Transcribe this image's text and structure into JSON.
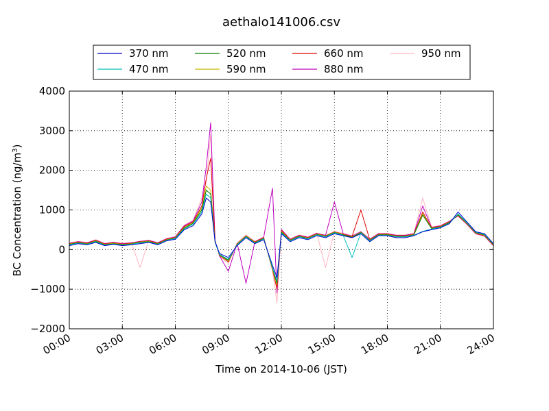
{
  "chart_data": {
    "type": "line",
    "title": "aethalo141006.csv",
    "xlabel": "Time on 2014-10-06 (JST)",
    "ylabel": "BC Concentration (ng/m",
    "ylabel_sup": "3",
    "ylabel_end": ")",
    "xlim": [
      "00:00",
      "24:00"
    ],
    "ylim": [
      -2000,
      4000
    ],
    "x_ticks": [
      "00:00",
      "03:00",
      "06:00",
      "09:00",
      "12:00",
      "15:00",
      "18:00",
      "21:00",
      "24:00"
    ],
    "y_ticks": [
      "−2000",
      "−1000",
      "0",
      "1000",
      "2000",
      "3000",
      "4000"
    ],
    "grid": true,
    "legend_position": "top-center",
    "series": [
      {
        "name": "370 nm",
        "color": "#0000cc",
        "x": [
          "00:00",
          "00:30",
          "01:00",
          "01:30",
          "02:00",
          "02:30",
          "03:00",
          "03:30",
          "04:00",
          "04:30",
          "05:00",
          "05:30",
          "06:00",
          "06:30",
          "07:00",
          "07:30",
          "07:45",
          "08:00",
          "08:15",
          "08:30",
          "09:00",
          "09:30",
          "10:00",
          "10:30",
          "11:00",
          "11:30",
          "11:45",
          "12:00",
          "12:30",
          "13:00",
          "13:30",
          "14:00",
          "14:30",
          "15:00",
          "15:30",
          "16:00",
          "16:30",
          "17:00",
          "17:30",
          "18:00",
          "18:30",
          "19:00",
          "19:30",
          "20:00",
          "20:30",
          "21:00",
          "21:30",
          "22:00",
          "22:30",
          "23:00",
          "23:30",
          "24:00"
        ],
        "values": [
          100,
          150,
          120,
          180,
          100,
          130,
          100,
          120,
          150,
          180,
          120,
          220,
          260,
          500,
          600,
          900,
          1300,
          1200,
          200,
          -100,
          -200,
          100,
          300,
          150,
          250,
          -400,
          -700,
          400,
          200,
          300,
          250,
          350,
          300,
          400,
          350,
          300,
          400,
          200,
          350,
          350,
          300,
          300,
          350,
          450,
          500,
          550,
          650,
          950,
          700,
          450,
          400,
          150
        ]
      },
      {
        "name": "470 nm",
        "color": "#00bfbf",
        "x": [
          "00:00",
          "00:30",
          "01:00",
          "01:30",
          "02:00",
          "02:30",
          "03:00",
          "03:30",
          "04:00",
          "04:30",
          "05:00",
          "05:30",
          "06:00",
          "06:30",
          "07:00",
          "07:30",
          "07:45",
          "08:00",
          "08:15",
          "08:30",
          "09:00",
          "09:30",
          "10:00",
          "10:30",
          "11:00",
          "11:30",
          "11:45",
          "12:00",
          "12:30",
          "13:00",
          "13:30",
          "14:00",
          "14:30",
          "15:00",
          "15:30",
          "16:00",
          "16:30",
          "17:00",
          "17:30",
          "18:00",
          "18:30",
          "19:00",
          "19:30",
          "20:00",
          "20:30",
          "21:00",
          "21:30",
          "22:00",
          "22:30",
          "23:00",
          "23:30",
          "24:00"
        ],
        "values": [
          120,
          160,
          130,
          200,
          110,
          140,
          110,
          130,
          170,
          190,
          130,
          230,
          280,
          520,
          640,
          950,
          1400,
          1300,
          180,
          -120,
          -250,
          120,
          320,
          160,
          270,
          -450,
          -800,
          420,
          220,
          320,
          270,
          370,
          320,
          420,
          360,
          -200,
          420,
          220,
          360,
          360,
          320,
          320,
          360,
          460,
          520,
          560,
          660,
          900,
          680,
          440,
          380,
          140
        ]
      },
      {
        "name": "520 nm",
        "color": "#008000",
        "x": [
          "00:00",
          "00:30",
          "01:00",
          "01:30",
          "02:00",
          "02:30",
          "03:00",
          "03:30",
          "04:00",
          "04:30",
          "05:00",
          "05:30",
          "06:00",
          "06:30",
          "07:00",
          "07:30",
          "07:45",
          "08:00",
          "08:15",
          "08:30",
          "09:00",
          "09:30",
          "10:00",
          "10:30",
          "11:00",
          "11:30",
          "11:45",
          "12:00",
          "12:30",
          "13:00",
          "13:30",
          "14:00",
          "14:30",
          "15:00",
          "15:30",
          "16:00",
          "16:30",
          "17:00",
          "17:30",
          "18:00",
          "18:30",
          "19:00",
          "19:30",
          "20:00",
          "20:30",
          "21:00",
          "21:30",
          "22:00",
          "22:30",
          "23:00",
          "23:30",
          "24:00"
        ],
        "values": [
          130,
          170,
          140,
          210,
          120,
          150,
          120,
          140,
          180,
          200,
          140,
          240,
          290,
          540,
          660,
          1000,
          1500,
          1400,
          190,
          -130,
          -270,
          130,
          330,
          170,
          280,
          -470,
          -850,
          440,
          230,
          330,
          280,
          380,
          330,
          430,
          370,
          310,
          430,
          230,
          370,
          370,
          330,
          330,
          370,
          870,
          530,
          570,
          680,
          880,
          670,
          430,
          370,
          130
        ]
      },
      {
        "name": "590 nm",
        "color": "#c8b400",
        "x": [
          "00:00",
          "00:30",
          "01:00",
          "01:30",
          "02:00",
          "02:30",
          "03:00",
          "03:30",
          "04:00",
          "04:30",
          "05:00",
          "05:30",
          "06:00",
          "06:30",
          "07:00",
          "07:30",
          "07:45",
          "08:00",
          "08:15",
          "08:30",
          "09:00",
          "09:30",
          "10:00",
          "10:30",
          "11:00",
          "11:30",
          "11:45",
          "12:00",
          "12:30",
          "13:00",
          "13:30",
          "14:00",
          "14:30",
          "15:00",
          "15:30",
          "16:00",
          "16:30",
          "17:00",
          "17:30",
          "18:00",
          "18:30",
          "19:00",
          "19:30",
          "20:00",
          "20:30",
          "21:00",
          "21:30",
          "22:00",
          "22:30",
          "23:00",
          "23:30",
          "24:00"
        ],
        "values": [
          140,
          180,
          150,
          220,
          130,
          160,
          130,
          150,
          190,
          210,
          150,
          250,
          300,
          560,
          680,
          1050,
          1600,
          1500,
          200,
          -140,
          -290,
          140,
          340,
          180,
          290,
          -490,
          -900,
          460,
          240,
          340,
          290,
          390,
          340,
          440,
          380,
          320,
          440,
          240,
          380,
          380,
          340,
          340,
          380,
          900,
          540,
          580,
          690,
          870,
          660,
          420,
          360,
          120
        ]
      },
      {
        "name": "660 nm",
        "color": "#e00000",
        "x": [
          "00:00",
          "00:30",
          "01:00",
          "01:30",
          "02:00",
          "02:30",
          "03:00",
          "03:30",
          "04:00",
          "04:30",
          "05:00",
          "05:30",
          "06:00",
          "06:30",
          "07:00",
          "07:30",
          "07:45",
          "08:00",
          "08:15",
          "08:30",
          "09:00",
          "09:30",
          "10:00",
          "10:30",
          "11:00",
          "11:30",
          "11:45",
          "12:00",
          "12:30",
          "13:00",
          "13:30",
          "14:00",
          "14:30",
          "15:00",
          "15:30",
          "16:00",
          "16:30",
          "17:00",
          "17:30",
          "18:00",
          "18:30",
          "19:00",
          "19:30",
          "20:00",
          "20:30",
          "21:00",
          "21:30",
          "22:00",
          "22:30",
          "23:00",
          "23:30",
          "24:00"
        ],
        "values": [
          150,
          190,
          160,
          230,
          140,
          170,
          140,
          160,
          200,
          220,
          160,
          260,
          310,
          580,
          700,
          1100,
          1800,
          2300,
          210,
          -150,
          -310,
          150,
          350,
          190,
          300,
          -510,
          -1000,
          480,
          250,
          350,
          300,
          400,
          350,
          450,
          390,
          330,
          1000,
          250,
          390,
          390,
          350,
          350,
          390,
          950,
          550,
          590,
          700,
          860,
          650,
          410,
          350,
          110
        ]
      },
      {
        "name": "880 nm",
        "color": "#bf00bf",
        "x": [
          "00:00",
          "00:30",
          "01:00",
          "01:30",
          "02:00",
          "02:30",
          "03:00",
          "03:30",
          "04:00",
          "04:30",
          "05:00",
          "05:30",
          "06:00",
          "06:30",
          "07:00",
          "07:30",
          "07:45",
          "08:00",
          "08:15",
          "08:30",
          "09:00",
          "09:30",
          "10:00",
          "10:30",
          "11:00",
          "11:30",
          "11:45",
          "12:00",
          "12:30",
          "13:00",
          "13:30",
          "14:00",
          "14:30",
          "15:00",
          "15:30",
          "16:00",
          "16:30",
          "17:00",
          "17:30",
          "18:00",
          "18:30",
          "19:00",
          "19:30",
          "20:00",
          "20:30",
          "21:00",
          "21:30",
          "22:00",
          "22:30",
          "23:00",
          "23:30",
          "24:00"
        ],
        "values": [
          160,
          200,
          170,
          240,
          150,
          180,
          150,
          170,
          210,
          230,
          170,
          270,
          320,
          600,
          720,
          1200,
          2100,
          3200,
          220,
          -160,
          -550,
          160,
          -850,
          200,
          310,
          1550,
          -1100,
          500,
          260,
          360,
          310,
          410,
          360,
          1200,
          400,
          340,
          450,
          260,
          400,
          400,
          360,
          360,
          400,
          1100,
          560,
          600,
          710,
          850,
          640,
          400,
          340,
          100
        ]
      },
      {
        "name": "950 nm",
        "color": "#ffb6c1",
        "x": [
          "00:00",
          "00:30",
          "01:00",
          "01:30",
          "02:00",
          "02:30",
          "03:00",
          "03:30",
          "04:00",
          "04:30",
          "05:00",
          "05:30",
          "06:00",
          "06:30",
          "07:00",
          "07:30",
          "07:45",
          "08:00",
          "08:15",
          "08:30",
          "09:00",
          "09:30",
          "10:00",
          "10:30",
          "11:00",
          "11:30",
          "11:45",
          "12:00",
          "12:30",
          "13:00",
          "13:30",
          "14:00",
          "14:30",
          "15:00",
          "15:30",
          "16:00",
          "16:30",
          "17:00",
          "17:30",
          "18:00",
          "18:30",
          "19:00",
          "19:30",
          "20:00",
          "20:30",
          "21:00",
          "21:30",
          "22:00",
          "22:30",
          "23:00",
          "23:30",
          "24:00"
        ],
        "values": [
          170,
          210,
          180,
          250,
          160,
          190,
          160,
          180,
          -450,
          240,
          180,
          280,
          330,
          620,
          740,
          1300,
          1700,
          2900,
          230,
          -170,
          -350,
          170,
          370,
          210,
          320,
          -530,
          -1350,
          520,
          270,
          370,
          320,
          420,
          -450,
          460,
          410,
          350,
          460,
          270,
          410,
          410,
          370,
          370,
          410,
          1300,
          570,
          610,
          720,
          840,
          630,
          390,
          330,
          90
        ]
      }
    ]
  }
}
